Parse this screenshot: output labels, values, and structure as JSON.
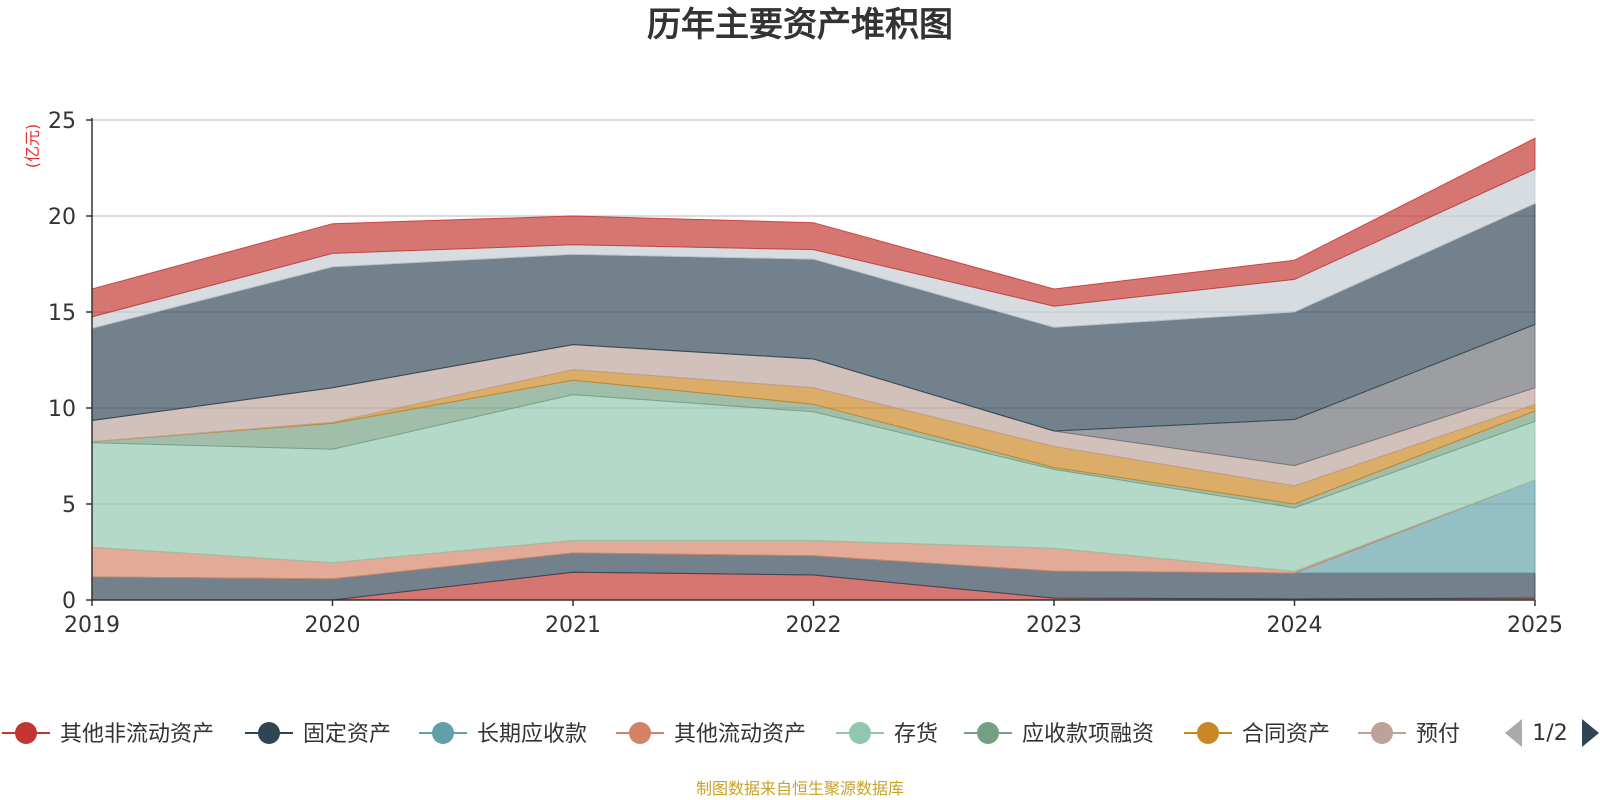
{
  "chart_data": {
    "type": "area",
    "stacked": true,
    "title": "历年主要资产堆积图",
    "ylabel": "(亿元)",
    "xlabel": "",
    "ylim": [
      0,
      25
    ],
    "yticks": [
      0,
      5,
      10,
      15,
      20,
      25
    ],
    "categories": [
      "2019",
      "2020",
      "2021",
      "2022",
      "2023",
      "2024",
      "2025"
    ],
    "series": [
      {
        "name": "其他非流动资产",
        "color": "#c23531",
        "values": [
          0.0,
          0.0,
          1.45,
          1.3,
          0.1,
          0.05,
          0.1
        ],
        "show_in_legend": true
      },
      {
        "name": "固定资产",
        "color": "#2f4554",
        "values": [
          1.2,
          1.1,
          1.0,
          1.0,
          1.4,
          1.35,
          1.3
        ],
        "show_in_legend": true
      },
      {
        "name": "长期应收款",
        "color": "#61a0a8",
        "values": [
          0.0,
          0.0,
          0.0,
          0.0,
          0.0,
          0.0,
          4.85
        ],
        "show_in_legend": true
      },
      {
        "name": "其他流动资产",
        "color": "#d48265",
        "values": [
          1.55,
          0.85,
          0.65,
          0.8,
          1.2,
          0.1,
          0.0
        ],
        "show_in_legend": true
      },
      {
        "name": "存货",
        "color": "#91c7ae",
        "values": [
          5.45,
          5.9,
          7.6,
          6.7,
          4.1,
          3.3,
          3.05
        ],
        "show_in_legend": true
      },
      {
        "name": "应收款项融资",
        "color": "#749f83",
        "values": [
          0.05,
          1.35,
          0.75,
          0.4,
          0.1,
          0.2,
          0.55
        ],
        "show_in_legend": true
      },
      {
        "name": "合同资产",
        "color": "#ca8622",
        "values": [
          0.0,
          0.05,
          0.55,
          0.85,
          1.1,
          0.95,
          0.35
        ],
        "show_in_legend": true
      },
      {
        "name": "预付款项",
        "legend_display": "预付",
        "color": "#bda29a",
        "values": [
          1.1,
          1.8,
          1.3,
          1.5,
          0.8,
          1.05,
          0.85
        ],
        "show_in_legend": true
      },
      {
        "name": "其他",
        "color": "#6e7074",
        "values": [
          0.0,
          0.0,
          0.0,
          0.0,
          0.0,
          2.4,
          3.3
        ],
        "show_in_legend": false
      },
      {
        "name": "其他",
        "color": "#2f4554",
        "values": [
          4.8,
          6.3,
          4.7,
          5.2,
          5.4,
          5.6,
          6.3
        ],
        "show_in_legend": false
      },
      {
        "name": "其他",
        "color": "#c4ccd3",
        "values": [
          0.6,
          0.7,
          0.5,
          0.5,
          1.1,
          1.7,
          1.8
        ],
        "show_in_legend": false
      },
      {
        "name": "其他",
        "color": "#c23531",
        "values": [
          1.45,
          1.55,
          1.5,
          1.4,
          0.9,
          1.0,
          1.6
        ],
        "show_in_legend": false
      }
    ],
    "legend": {
      "position": "bottom",
      "page": "1/2"
    },
    "grid": true
  },
  "source_note": "制图数据来自恒生聚源数据库"
}
